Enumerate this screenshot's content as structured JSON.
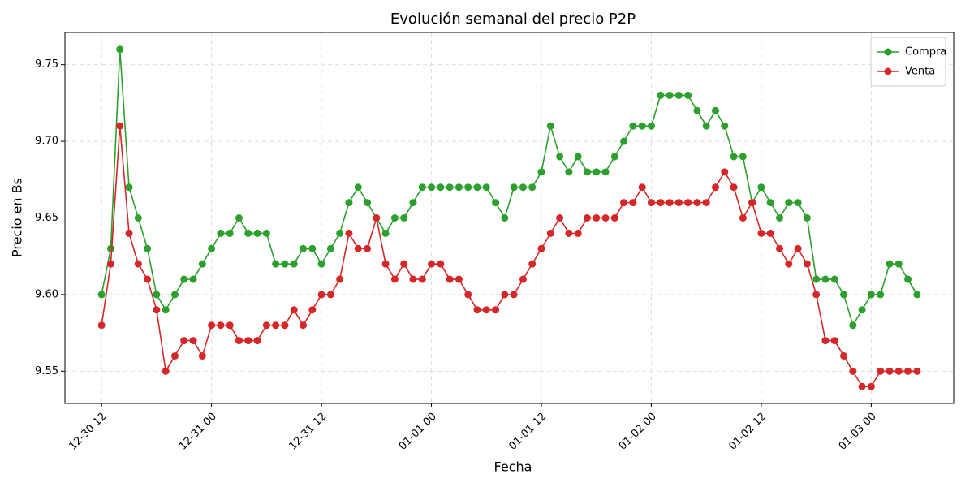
{
  "chart_data": {
    "type": "line",
    "title": "Evolución semanal del precio P2P",
    "x_label": "Fecha",
    "y_label": "Precio en Bs",
    "x": [
      "12-30 12",
      "12-30 13",
      "12-30 14",
      "12-30 15",
      "12-30 16",
      "12-30 17",
      "12-30 18",
      "12-30 19",
      "12-30 20",
      "12-30 21",
      "12-30 22",
      "12-30 23",
      "12-31 00",
      "12-31 01",
      "12-31 02",
      "12-31 03",
      "12-31 04",
      "12-31 05",
      "12-31 06",
      "12-31 07",
      "12-31 08",
      "12-31 09",
      "12-31 10",
      "12-31 11",
      "12-31 12",
      "12-31 13",
      "12-31 14",
      "12-31 15",
      "12-31 16",
      "12-31 17",
      "12-31 18",
      "12-31 19",
      "12-31 20",
      "12-31 21",
      "12-31 22",
      "12-31 23",
      "01-01 00",
      "01-01 01",
      "01-01 02",
      "01-01 03",
      "01-01 04",
      "01-01 05",
      "01-01 06",
      "01-01 07",
      "01-01 08",
      "01-01 09",
      "01-01 10",
      "01-01 11",
      "01-01 12",
      "01-01 13",
      "01-01 14",
      "01-01 15",
      "01-01 16",
      "01-01 17",
      "01-01 18",
      "01-01 19",
      "01-01 20",
      "01-01 21",
      "01-01 22",
      "01-01 23",
      "01-02 00",
      "01-02 01",
      "01-02 02",
      "01-02 03",
      "01-02 04",
      "01-02 05",
      "01-02 06",
      "01-02 07",
      "01-02 08",
      "01-02 09",
      "01-02 10",
      "01-02 11",
      "01-02 12",
      "01-02 13",
      "01-02 14",
      "01-02 15",
      "01-02 16",
      "01-02 17",
      "01-02 18",
      "01-02 19",
      "01-02 20",
      "01-02 21",
      "01-02 22",
      "01-02 23",
      "01-03 00",
      "01-03 01",
      "01-03 02",
      "01-03 03",
      "01-03 04",
      "01-03 05"
    ],
    "series": [
      {
        "name": "Compra",
        "color": "#2ca02c",
        "values": [
          9.6,
          9.63,
          9.76,
          9.67,
          9.65,
          9.63,
          9.6,
          9.59,
          9.6,
          9.61,
          9.61,
          9.62,
          9.63,
          9.64,
          9.64,
          9.65,
          9.64,
          9.64,
          9.64,
          9.62,
          9.62,
          9.62,
          9.63,
          9.63,
          9.62,
          9.63,
          9.64,
          9.66,
          9.67,
          9.66,
          9.65,
          9.64,
          9.65,
          9.65,
          9.66,
          9.67,
          9.67,
          9.67,
          9.67,
          9.67,
          9.67,
          9.67,
          9.67,
          9.66,
          9.65,
          9.67,
          9.67,
          9.67,
          9.68,
          9.71,
          9.69,
          9.68,
          9.69,
          9.68,
          9.68,
          9.68,
          9.69,
          9.7,
          9.71,
          9.71,
          9.71,
          9.73,
          9.73,
          9.73,
          9.73,
          9.72,
          9.71,
          9.72,
          9.71,
          9.69,
          9.69,
          9.66,
          9.67,
          9.66,
          9.65,
          9.66,
          9.66,
          9.65,
          9.61,
          9.61,
          9.61,
          9.6,
          9.58,
          9.59,
          9.6,
          9.6,
          9.62,
          9.62,
          9.61,
          9.6
        ]
      },
      {
        "name": "Venta",
        "color": "#d62728",
        "values": [
          9.58,
          9.62,
          9.71,
          9.64,
          9.62,
          9.61,
          9.59,
          9.55,
          9.56,
          9.57,
          9.57,
          9.56,
          9.58,
          9.58,
          9.58,
          9.57,
          9.57,
          9.57,
          9.58,
          9.58,
          9.58,
          9.59,
          9.58,
          9.59,
          9.6,
          9.6,
          9.61,
          9.64,
          9.63,
          9.63,
          9.65,
          9.62,
          9.61,
          9.62,
          9.61,
          9.61,
          9.62,
          9.62,
          9.61,
          9.61,
          9.6,
          9.59,
          9.59,
          9.59,
          9.6,
          9.6,
          9.61,
          9.62,
          9.63,
          9.64,
          9.65,
          9.64,
          9.64,
          9.65,
          9.65,
          9.65,
          9.65,
          9.66,
          9.66,
          9.67,
          9.66,
          9.66,
          9.66,
          9.66,
          9.66,
          9.66,
          9.66,
          9.67,
          9.68,
          9.67,
          9.65,
          9.66,
          9.64,
          9.64,
          9.63,
          9.62,
          9.63,
          9.62,
          9.6,
          9.57,
          9.57,
          9.56,
          9.55,
          9.54,
          9.54,
          9.55,
          9.55,
          9.55,
          9.55,
          9.55
        ]
      }
    ],
    "xlim": [
      "12-30 08",
      "01-03 09"
    ],
    "xticks": [
      "12-30 12",
      "12-31 00",
      "12-31 12",
      "01-01 00",
      "01-01 12",
      "01-02 00",
      "01-02 12",
      "01-03 00"
    ],
    "ylim": [
      9.529,
      9.771
    ],
    "yticks": [
      9.55,
      {
        "value": 9.6,
        "label": "9.60"
      },
      9.65,
      {
        "value": 9.7,
        "label": "9.70"
      },
      9.75
    ],
    "grid": true,
    "legend": "upper right"
  }
}
